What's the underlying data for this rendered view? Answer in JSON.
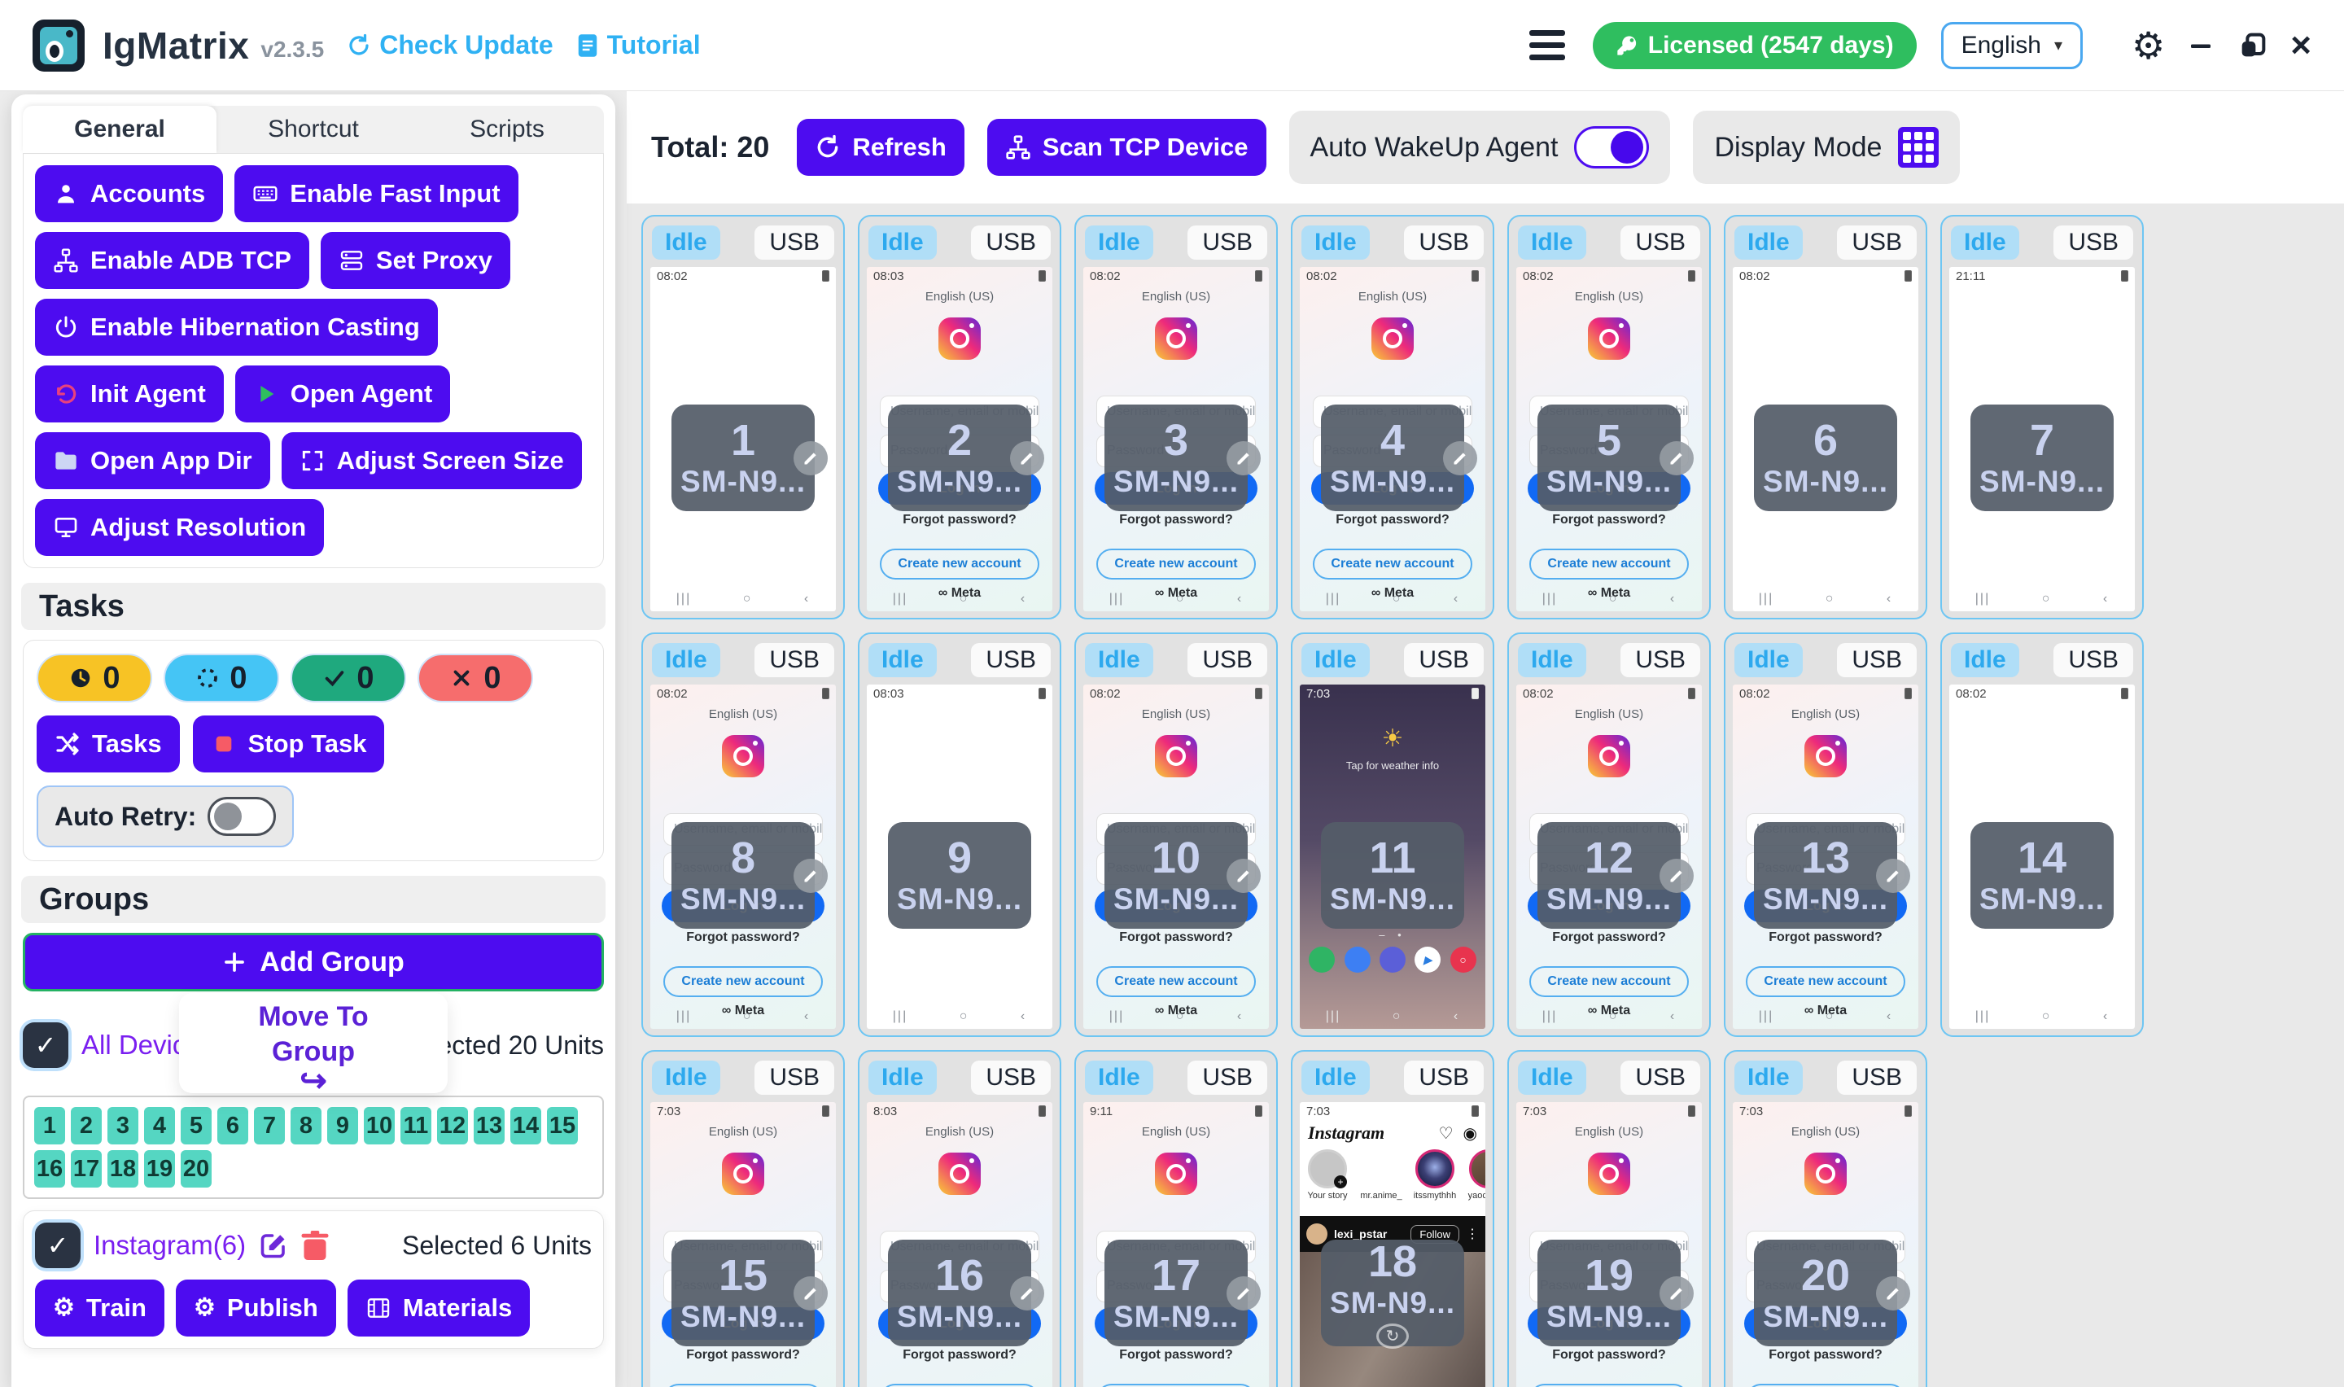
{
  "header": {
    "app_title": "IgMatrix",
    "version": "v2.3.5",
    "check_update": "Check Update",
    "tutorial": "Tutorial",
    "license": "Licensed (2547 days)",
    "language": "English",
    "license_color": "#2fbe5f",
    "accent_color": "#4d0cf0",
    "link_color": "#2fb1f3"
  },
  "sidebar": {
    "tabs": [
      "General",
      "Shortcut",
      "Scripts"
    ],
    "active_tab": "General",
    "general_buttons": [
      {
        "label": "Accounts",
        "icon": "person"
      },
      {
        "label": "Enable Fast Input",
        "icon": "keyboard"
      },
      {
        "label": "Enable ADB TCP",
        "icon": "network"
      },
      {
        "label": "Set Proxy",
        "icon": "server"
      },
      {
        "label": "Enable Hibernation Casting",
        "icon": "power"
      },
      {
        "label": "Init Agent",
        "icon": "rotate",
        "icon_color": "#e8417e"
      },
      {
        "label": "Open Agent",
        "icon": "play",
        "icon_color": "#2fbe5f"
      },
      {
        "label": "Open App Dir",
        "icon": "folder",
        "icon_color": "#cdd6f4"
      },
      {
        "label": "Adjust Screen Size",
        "icon": "expand"
      },
      {
        "label": "Adjust Resolution",
        "icon": "monitor"
      }
    ],
    "tasks": {
      "title": "Tasks",
      "counters": [
        {
          "icon": "clock",
          "count": "0",
          "bg": "#f7c325"
        },
        {
          "icon": "spin",
          "count": "0",
          "bg": "#45c5f5"
        },
        {
          "icon": "check",
          "count": "0",
          "bg": "#1fa97e"
        },
        {
          "icon": "cross",
          "count": "0",
          "bg": "#f66d6d"
        }
      ],
      "tasks_button": "Tasks",
      "stop_button": "Stop Task",
      "auto_retry_label": "Auto Retry:",
      "auto_retry_on": false
    },
    "groups": {
      "title": "Groups",
      "add_group": "Add Group",
      "all_devices": "All Devices (20)",
      "move_to_line1": "Move To",
      "move_to_line2": "Group",
      "move_arrow": "↪",
      "selected_all": "Selected 20 Units",
      "device_numbers": [
        "1",
        "2",
        "3",
        "4",
        "5",
        "6",
        "7",
        "8",
        "9",
        "10",
        "11",
        "12",
        "13",
        "14",
        "15",
        "16",
        "17",
        "18",
        "19",
        "20"
      ],
      "group_name": "Instagram(6)",
      "selected_group": "Selected 6 Units",
      "group_buttons": [
        {
          "label": "Train",
          "icon": "gear"
        },
        {
          "label": "Publish",
          "icon": "gear"
        },
        {
          "label": "Materials",
          "icon": "film"
        }
      ]
    }
  },
  "toolbar": {
    "total_label": "Total:",
    "total_value": "20",
    "refresh": "Refresh",
    "scan": "Scan TCP Device",
    "auto_wakeup": "Auto WakeUp Agent",
    "auto_wakeup_on": true,
    "display_mode": "Display Mode"
  },
  "devices": {
    "status": "Idle",
    "connection": "USB",
    "model": "SM-N9...",
    "nav": {
      "recent": "|||",
      "home": "○",
      "back": "‹"
    },
    "login_screen": {
      "language": "English (US)",
      "username_placeholder": "Username, email or mobile number",
      "password_placeholder": "Password",
      "login": "Log in",
      "forgot": "Forgot password?",
      "create": "Create new account",
      "meta": "∞ Meta"
    },
    "home_screen": {
      "weather_icon": "☀",
      "weather_text": "Tap for weather info",
      "dots": "– •"
    },
    "feed_screen": {
      "logo": "Instagram",
      "heart_icon": "♡",
      "messenger_icon": "◉",
      "stories": [
        {
          "name": "Your story",
          "style": "grey"
        },
        {
          "name": "mr.anime_",
          "style": "photo"
        },
        {
          "name": "itssmythhh",
          "style": "galaxy"
        },
        {
          "name": "yaochangf",
          "style": "brown"
        }
      ],
      "post_user": "lexi_pstar",
      "follow": "Follow",
      "more": "⋮"
    },
    "cards": [
      {
        "num": "1",
        "time": "08:02",
        "screen": "plain",
        "pencil": true
      },
      {
        "num": "2",
        "time": "08:03",
        "screen": "login",
        "pencil": true
      },
      {
        "num": "3",
        "time": "08:02",
        "screen": "login",
        "pencil": true
      },
      {
        "num": "4",
        "time": "08:02",
        "screen": "login",
        "pencil": true
      },
      {
        "num": "5",
        "time": "08:02",
        "screen": "login",
        "pencil": true
      },
      {
        "num": "6",
        "time": "08:02",
        "screen": "plain",
        "pencil": false
      },
      {
        "num": "7",
        "time": "21:11",
        "screen": "plain",
        "pencil": false
      },
      {
        "num": "8",
        "time": "08:02",
        "screen": "login",
        "pencil": true
      },
      {
        "num": "9",
        "time": "08:03",
        "screen": "plain",
        "pencil": false
      },
      {
        "num": "10",
        "time": "08:02",
        "screen": "login",
        "pencil": true
      },
      {
        "num": "11",
        "time": "7:03",
        "screen": "home",
        "pencil": false
      },
      {
        "num": "12",
        "time": "08:02",
        "screen": "login",
        "pencil": true
      },
      {
        "num": "13",
        "time": "08:02",
        "screen": "login",
        "pencil": true
      },
      {
        "num": "14",
        "time": "08:02",
        "screen": "plain",
        "pencil": false
      },
      {
        "num": "15",
        "time": "7:03",
        "screen": "login",
        "pencil": true
      },
      {
        "num": "16",
        "time": "8:03",
        "screen": "login",
        "pencil": true
      },
      {
        "num": "17",
        "time": "9:11",
        "screen": "login",
        "pencil": true
      },
      {
        "num": "18",
        "time": "7:03",
        "screen": "feed",
        "pencil": false
      },
      {
        "num": "19",
        "time": "7:03",
        "screen": "login",
        "pencil": true
      },
      {
        "num": "20",
        "time": "7:03",
        "screen": "login",
        "pencil": true
      }
    ]
  }
}
